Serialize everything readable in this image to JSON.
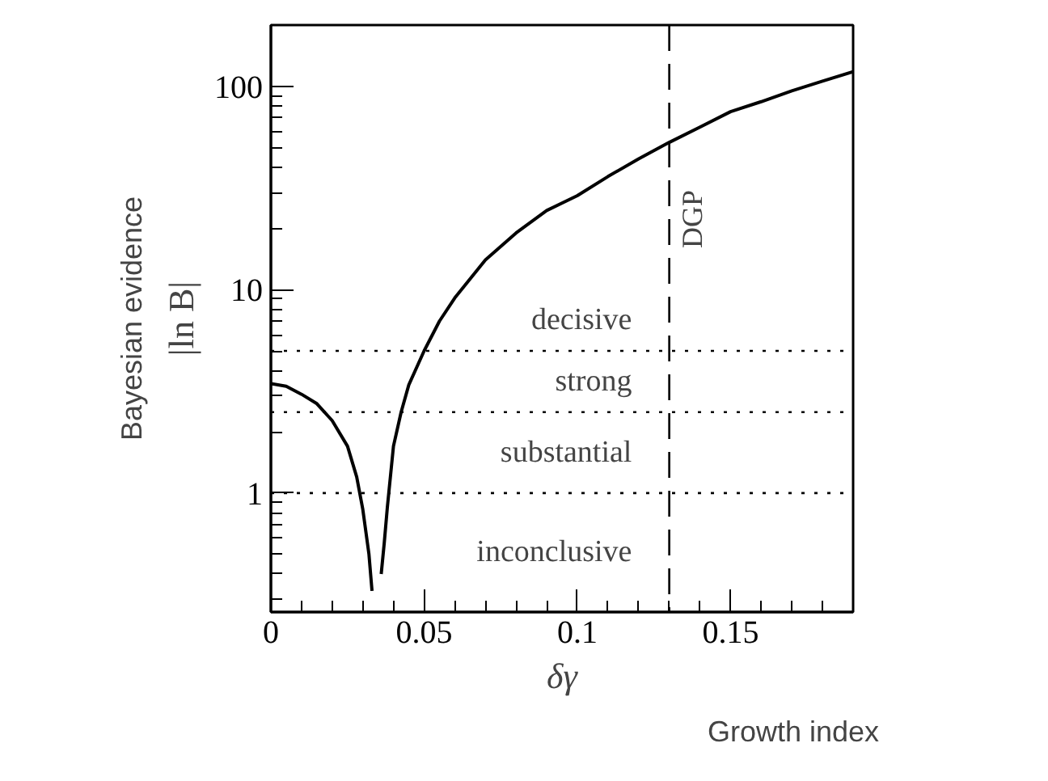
{
  "chart_data": {
    "type": "line",
    "xlabel": "δγ",
    "ylabel": "|ln B|",
    "x": [
      0,
      0.005,
      0.01,
      0.015,
      0.02,
      0.025,
      0.028,
      0.03,
      0.032,
      0.033,
      0.0345,
      0.0355,
      0.036,
      0.037,
      0.038,
      0.04,
      0.0425,
      0.045,
      0.05,
      0.055,
      0.06,
      0.07,
      0.08,
      0.09,
      0.1,
      0.11,
      0.12,
      0.13,
      0.14,
      0.15,
      0.16,
      0.17,
      0.18,
      0.19
    ],
    "series": [
      {
        "color": "#000000",
        "values": [
          3.45,
          3.35,
          3.06,
          2.75,
          2.27,
          1.7,
          1.2,
          0.83,
          0.5,
          0.33,
          null,
          null,
          0.4,
          0.57,
          0.85,
          1.7,
          2.5,
          3.4,
          5,
          7,
          9.1,
          14,
          19,
          24.5,
          29,
          36,
          44,
          53,
          63,
          75,
          84,
          95,
          106,
          118
        ]
      }
    ],
    "xlim": [
      0,
      0.19
    ],
    "ylim": [
      0.26,
      200
    ],
    "xticks": [
      0,
      0.05,
      0.1,
      0.15
    ],
    "yticks": [
      1,
      10,
      100
    ],
    "log": "y",
    "grid": false,
    "marker": "none",
    "line_style": "solid",
    "ref_lines": [
      {
        "axis": "y",
        "value": 1,
        "line_style": "dotted"
      },
      {
        "axis": "y",
        "value": 2.5,
        "line_style": "dotted"
      },
      {
        "axis": "y",
        "value": 5,
        "line_style": "dotted"
      },
      {
        "axis": "x",
        "value": 0.13,
        "label": "DGP",
        "line_style": "dashed"
      }
    ],
    "annotations": [
      "Bayesian evidence",
      "Growth index",
      "decisive",
      "strong",
      "substantial",
      "inconclusive"
    ]
  }
}
